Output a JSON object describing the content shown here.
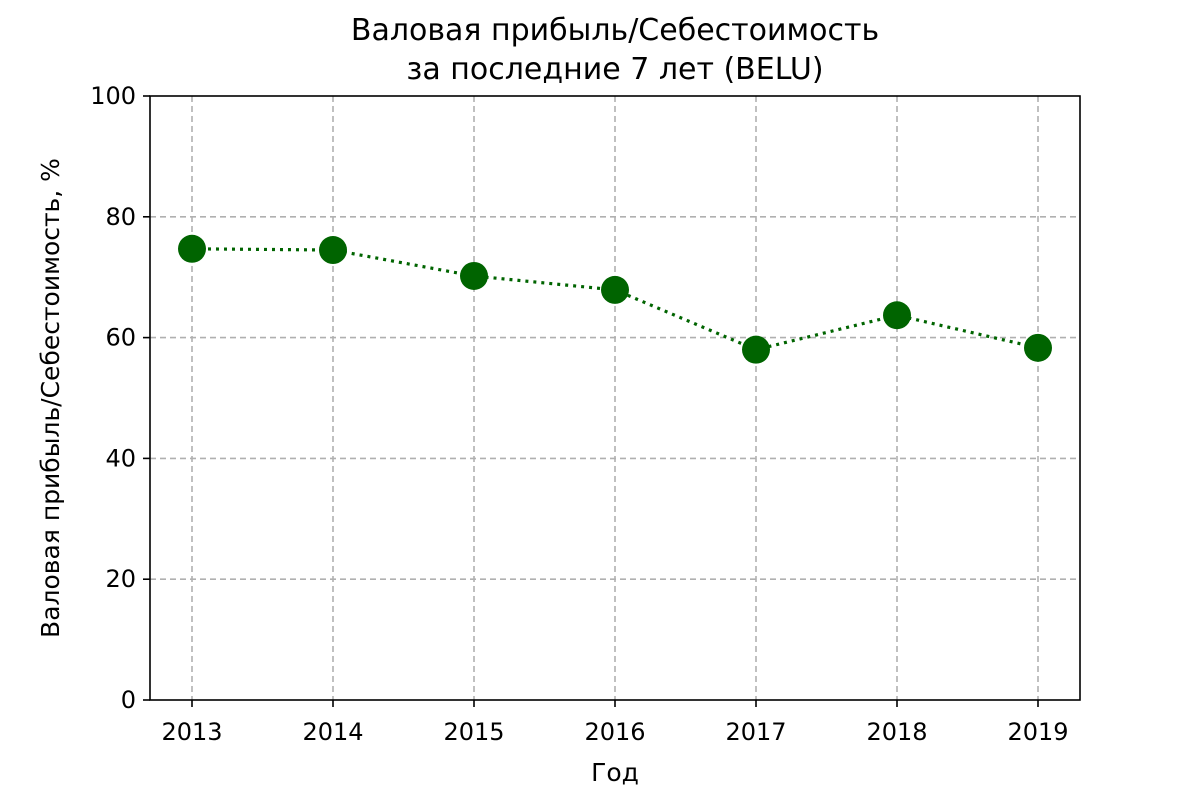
{
  "chart_data": {
    "type": "line",
    "title_line1": "Валовая прибыль/Себестоимость",
    "title_line2": "за последние 7 лет (BELU)",
    "xlabel": "Год",
    "ylabel": "Валовая прибыль/Себестоимость, %",
    "categories": [
      "2013",
      "2014",
      "2015",
      "2016",
      "2017",
      "2018",
      "2019"
    ],
    "y_ticks": [
      "0",
      "20",
      "40",
      "60",
      "80",
      "100"
    ],
    "series": [
      {
        "values": [
          74.7,
          74.5,
          70.2,
          67.9,
          58.0,
          63.7,
          58.3
        ],
        "color": "#006400",
        "line_style": "dotted",
        "marker": "circle"
      }
    ],
    "ylim": [
      0,
      100
    ],
    "grid": true
  }
}
